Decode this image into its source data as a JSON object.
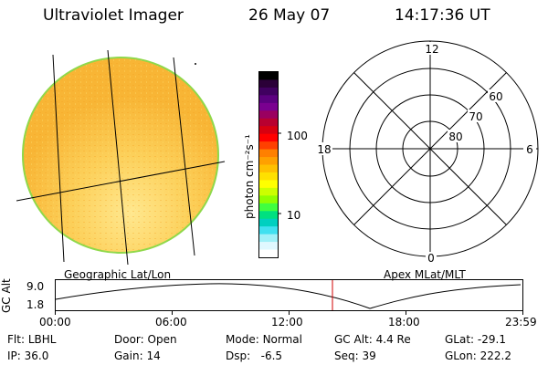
{
  "header": {
    "instrument": "Ultraviolet Imager",
    "date": "26 May 07",
    "time": "14:17:36 UT"
  },
  "colorbar": {
    "unit_label": "photon cm⁻²s⁻¹",
    "ticks": [
      "100",
      "10"
    ],
    "colors": [
      "#000000",
      "#2b0038",
      "#400060",
      "#5c0080",
      "#7a0090",
      "#9a0060",
      "#b80030",
      "#d80010",
      "#ff0000",
      "#ff4000",
      "#ff8000",
      "#ffa000",
      "#ffc000",
      "#ffe000",
      "#ffff00",
      "#ccff00",
      "#90ff00",
      "#40ff40",
      "#00e080",
      "#00d0c0",
      "#40e0f0",
      "#a0f0f8",
      "#e0f8ff",
      "#ffffff"
    ]
  },
  "polar": {
    "mlt_labels": [
      "12",
      "6",
      "0",
      "18"
    ],
    "lat_labels": [
      "60",
      "70",
      "80"
    ]
  },
  "subtitles": {
    "left": "Geographic Lat/Lon",
    "right": "Apex MLat/MLT"
  },
  "altitude_plot": {
    "ylabel": "GC Alt",
    "yticks": [
      "9.0",
      "1.8"
    ],
    "xticks": [
      "00:00",
      "06:00",
      "12:00",
      "18:00",
      "23:59"
    ]
  },
  "info": {
    "row1": [
      {
        "key": "Flt:",
        "value": "LBHL"
      },
      {
        "key": "Door:",
        "value": "Open"
      },
      {
        "key": "Mode:",
        "value": "Normal"
      },
      {
        "key": "GC Alt:",
        "value": "4.4 Re"
      },
      {
        "key": "GLat:",
        "value": "-29.1"
      }
    ],
    "row2": [
      {
        "key": "IP:",
        "value": "36.0"
      },
      {
        "key": "Gain:",
        "value": "14"
      },
      {
        "key": "Dsp:",
        "value": "-6.5"
      },
      {
        "key": "Seq:",
        "value": "39"
      },
      {
        "key": "GLon:",
        "value": "222.2"
      }
    ]
  }
}
